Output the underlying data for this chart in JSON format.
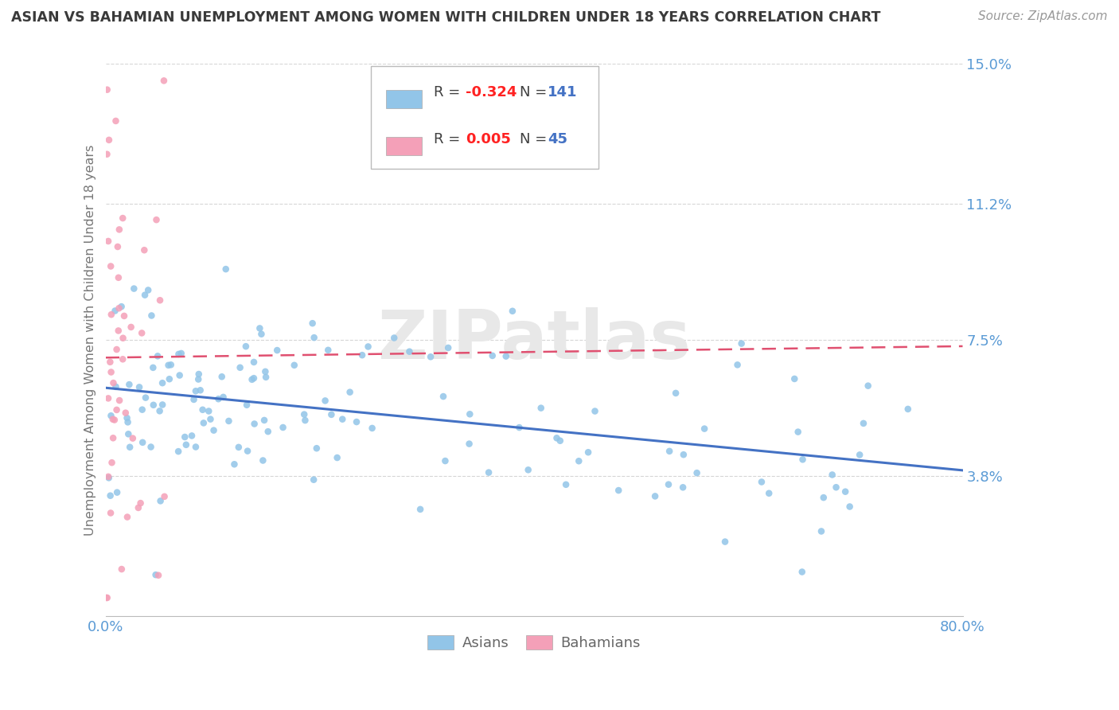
{
  "title": "ASIAN VS BAHAMIAN UNEMPLOYMENT AMONG WOMEN WITH CHILDREN UNDER 18 YEARS CORRELATION CHART",
  "source": "Source: ZipAtlas.com",
  "ylabel": "Unemployment Among Women with Children Under 18 years",
  "xlim": [
    0.0,
    80.0
  ],
  "ylim": [
    0.0,
    15.0
  ],
  "ytick_vals": [
    3.8,
    7.5,
    11.2,
    15.0
  ],
  "ytick_labels": [
    "3.8%",
    "7.5%",
    "11.2%",
    "15.0%"
  ],
  "asian_R": -0.324,
  "asian_N": 141,
  "bahamian_R": 0.005,
  "bahamian_N": 45,
  "asian_color": "#92C5E8",
  "bahamian_color": "#F4A0B8",
  "asian_line_color": "#4472C4",
  "bahamian_line_color": "#E05070",
  "background_color": "#FFFFFF",
  "grid_color": "#CCCCCC",
  "title_color": "#3A3A3A",
  "tick_label_color": "#5B9BD5",
  "source_color": "#999999",
  "watermark_color": "#E8E8E8",
  "legend_R_color": "#FF2222",
  "legend_N_color": "#4472C4",
  "legend_text_color": "#404040",
  "ylabel_color": "#777777",
  "bottom_legend_color": "#666666"
}
